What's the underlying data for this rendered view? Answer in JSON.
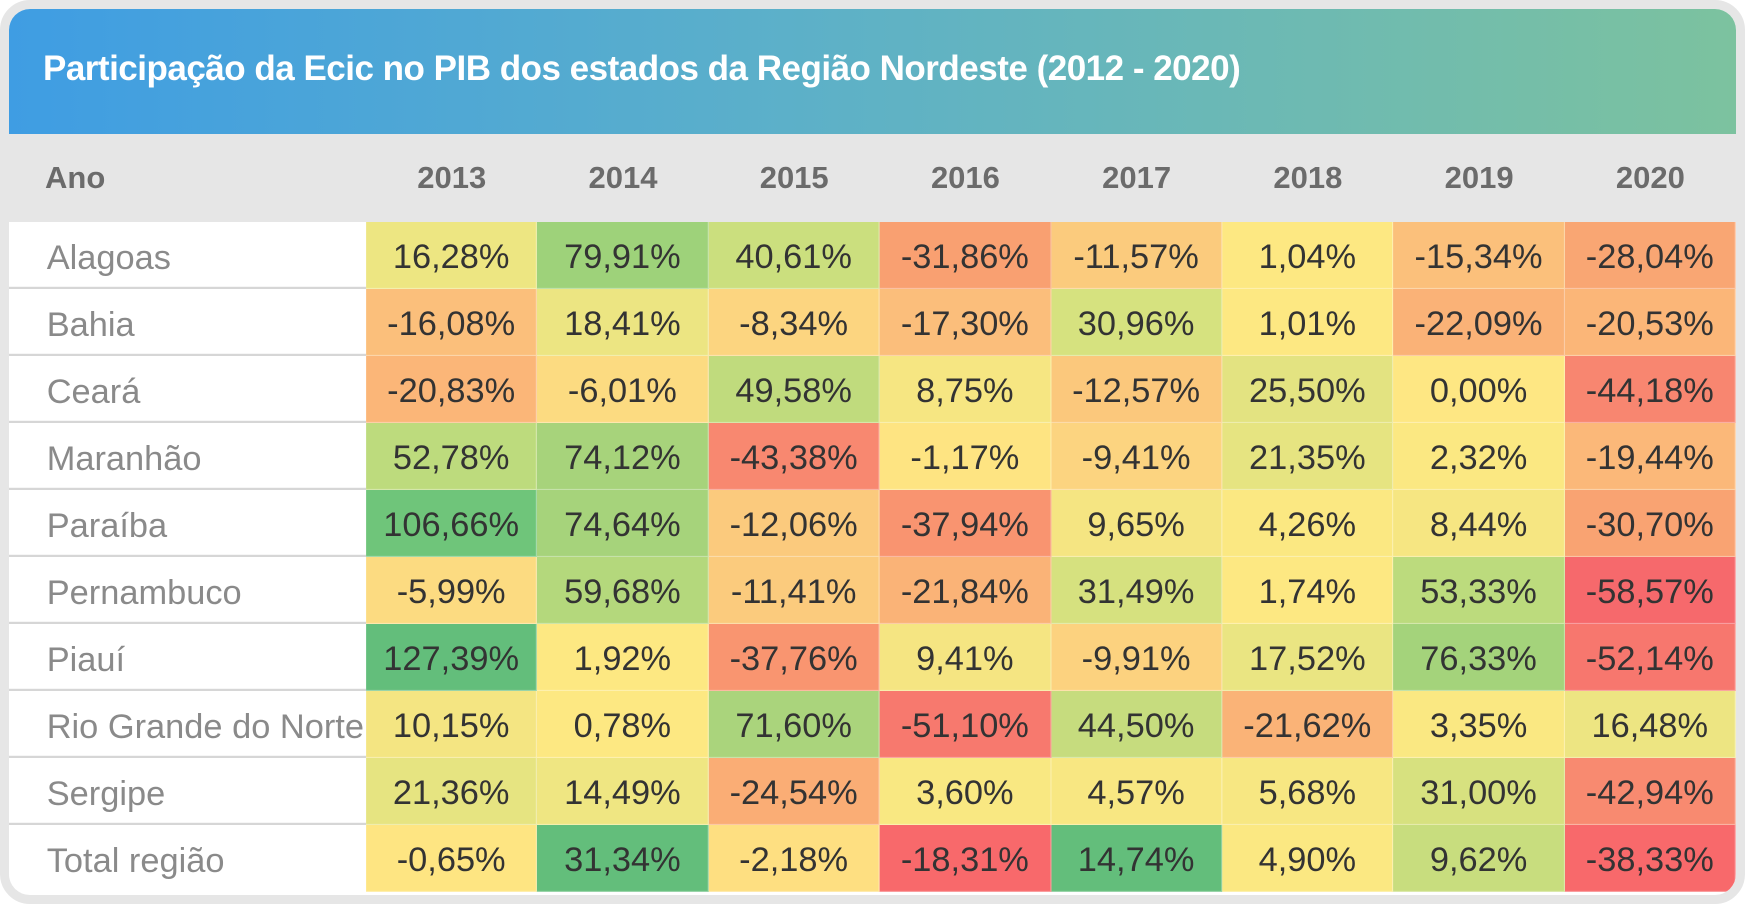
{
  "chart_data": {
    "type": "table",
    "title": "Participação da Ecic no PIB dos estados da Região Nordeste (2012 - 2020)",
    "header_label": "Ano",
    "columns": [
      "2013",
      "2014",
      "2015",
      "2016",
      "2017",
      "2018",
      "2019",
      "2020"
    ],
    "rows": [
      {
        "label": "Alagoas",
        "values": [
          "16,28%",
          "79,91%",
          "40,61%",
          "-31,86%",
          "-11,57%",
          "1,04%",
          "-15,34%",
          "-28,04%"
        ],
        "colors": [
          "#ede682",
          "#9ed27a",
          "#cbdf7e",
          "#f9a071",
          "#fbcb7d",
          "#fde882",
          "#fbc07b",
          "#f9a673"
        ]
      },
      {
        "label": "Bahia",
        "values": [
          "-16,08%",
          "18,41%",
          "-8,34%",
          "-17,30%",
          "30,96%",
          "1,01%",
          "-22,09%",
          "-20,53%"
        ],
        "colors": [
          "#fbbf7b",
          "#ece582",
          "#fcd580",
          "#fbbe7b",
          "#d6e27f",
          "#fde882",
          "#fab277",
          "#fbb678"
        ]
      },
      {
        "label": "Ceará",
        "values": [
          "-20,83%",
          "-6,01%",
          "49,58%",
          "8,75%",
          "-12,57%",
          "25,50%",
          "0,00%",
          "-44,18%"
        ],
        "colors": [
          "#fbb678",
          "#fcdb81",
          "#c0db7d",
          "#f6e682",
          "#fbc87c",
          "#e3e381",
          "#fee783",
          "#f88670"
        ]
      },
      {
        "label": "Maranhão",
        "values": [
          "52,78%",
          "74,12%",
          "-43,38%",
          "-1,17%",
          "-9,41%",
          "21,35%",
          "2,32%",
          "-19,44%"
        ],
        "colors": [
          "#bddb7d",
          "#a7d37b",
          "#f88870",
          "#fee482",
          "#fcd480",
          "#e6e481",
          "#fbe882",
          "#fbb879"
        ]
      },
      {
        "label": "Paraíba",
        "values": [
          "106,66%",
          "74,64%",
          "-12,06%",
          "-37,94%",
          "9,65%",
          "4,26%",
          "8,44%",
          "-30,70%"
        ],
        "colors": [
          "#6fc57a",
          "#a6d37b",
          "#fbca7d",
          "#f99470",
          "#f5e582",
          "#fbe882",
          "#f6e682",
          "#f9a372"
        ]
      },
      {
        "label": "Pernambuco",
        "values": [
          "-5,99%",
          "59,68%",
          "-11,41%",
          "-21,84%",
          "31,49%",
          "1,74%",
          "53,33%",
          "-58,57%"
        ],
        "colors": [
          "#fcdb81",
          "#b4d87c",
          "#fbcb7d",
          "#fab377",
          "#d6e17f",
          "#fde882",
          "#bcdb7d",
          "#f6696c"
        ]
      },
      {
        "label": "Piauí",
        "values": [
          "127,39%",
          "1,92%",
          "-37,76%",
          "9,41%",
          "-9,91%",
          "17,52%",
          "76,33%",
          "-52,14%"
        ],
        "colors": [
          "#63be7b",
          "#fde882",
          "#f99570",
          "#f5e582",
          "#fcd27f",
          "#eae582",
          "#a4d37b",
          "#f7776e"
        ]
      },
      {
        "label": "Rio Grande do Norte",
        "values": [
          "10,15%",
          "0,78%",
          "71,60%",
          "-51,10%",
          "44,50%",
          "-21,62%",
          "3,35%",
          "16,48%"
        ],
        "colors": [
          "#f4e582",
          "#fde882",
          "#aad47c",
          "#f7796e",
          "#c6dc7e",
          "#fab377",
          "#fae882",
          "#ede582"
        ]
      },
      {
        "label": "Sergipe",
        "values": [
          "21,36%",
          "14,49%",
          "-24,54%",
          "3,60%",
          "4,57%",
          "5,68%",
          "31,00%",
          "-42,94%"
        ],
        "colors": [
          "#e6e481",
          "#efe682",
          "#faad75",
          "#f9e882",
          "#f8e782",
          "#f7e782",
          "#d7e17f",
          "#f88a70"
        ]
      },
      {
        "label": "Total região",
        "values": [
          "-0,65%",
          "31,34%",
          "-2,18%",
          "-18,31%",
          "14,74%",
          "4,90%",
          "9,62%",
          "-38,33%"
        ],
        "colors": [
          "#fee582",
          "#63be7b",
          "#fedf81",
          "#f8696b",
          "#63be7b",
          "#fbe882",
          "#c8dd7e",
          "#f8696b"
        ]
      }
    ]
  }
}
